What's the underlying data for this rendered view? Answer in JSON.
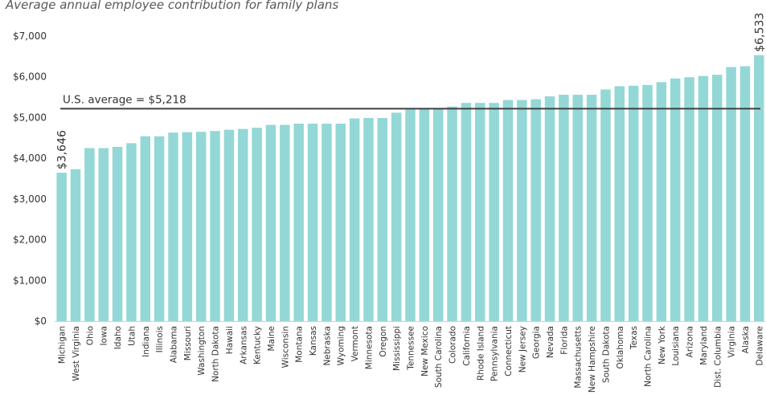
{
  "chart_data": {
    "type": "bar",
    "title": "Average annual employee contribution for family plans",
    "xlabel": "",
    "ylabel": "",
    "ylim": [
      0,
      7000
    ],
    "y_ticks": [
      0,
      1000,
      2000,
      3000,
      4000,
      5000,
      6000,
      7000
    ],
    "y_tick_labels": [
      "$0",
      "$1,000",
      "$2,000",
      "$3,000",
      "$4,000",
      "$5,000",
      "$6,000",
      "$7,000"
    ],
    "bar_color": "#93D8D6",
    "reference_line": {
      "value": 5218,
      "label": "U.S. average = $5,218",
      "color": "#404040"
    },
    "data_labels": [
      {
        "category": "Michigan",
        "text": "$3,646"
      },
      {
        "category": "Delaware",
        "text": "$6,533"
      }
    ],
    "categories": [
      "Michigan",
      "West Virginia",
      "Ohio",
      "Iowa",
      "Idaho",
      "Utah",
      "Indiana",
      "Illinois",
      "Alabama",
      "Missouri",
      "Washington",
      "North Dakota",
      "Hawaii",
      "Arkansas",
      "Kentucky",
      "Maine",
      "Wisconsin",
      "Montana",
      "Kansas",
      "Nebraska",
      "Wyoming",
      "Vermont",
      "Minnesota",
      "Oregon",
      "Mississippi",
      "Tennessee",
      "New Mexico",
      "South Carolina",
      "Colorado",
      "California",
      "Rhode Island",
      "Pennsylvania",
      "Connecticut",
      "New Jersey",
      "Georgia",
      "Nevada",
      "Florida",
      "Massachusetts",
      "New Hampshire",
      "South Dakota",
      "Oklahoma",
      "Texas",
      "North Carolina",
      "New York",
      "Louisiana",
      "Arizona",
      "Maryland",
      "Dist. Columbia",
      "Virginia",
      "Alaska",
      "Delaware"
    ],
    "values": [
      3646,
      3730,
      4250,
      4250,
      4280,
      4370,
      4540,
      4540,
      4630,
      4640,
      4650,
      4670,
      4700,
      4720,
      4750,
      4820,
      4820,
      4850,
      4850,
      4850,
      4850,
      4980,
      4990,
      4990,
      5120,
      5200,
      5220,
      5230,
      5270,
      5360,
      5360,
      5360,
      5430,
      5430,
      5450,
      5520,
      5560,
      5560,
      5560,
      5690,
      5770,
      5780,
      5800,
      5870,
      5960,
      5990,
      6020,
      6050,
      6240,
      6260,
      6533
    ]
  }
}
